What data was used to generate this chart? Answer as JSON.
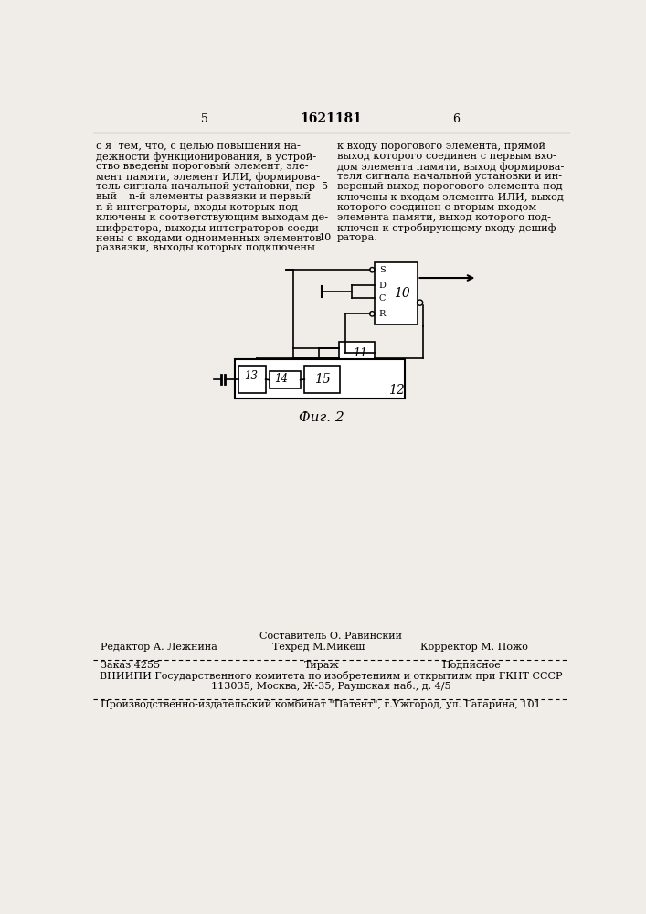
{
  "bg_color": "#f0ede8",
  "page_number_left": "5",
  "page_number_center": "1621181",
  "page_number_right": "6",
  "text_col1": [
    "с я  тем, что, с целью повышения на-",
    "дежности функционирования, в устрой-",
    "ство введены пороговый элемент, эле-",
    "мент памяти, элемент ИЛИ, формирова-",
    "тель сигнала начальной установки, пер-",
    "вый – n-й элементы развязки и первый –",
    "n-й интеграторы, входы которых под-",
    "ключены к соответствующим выходам де-",
    "шифратора, выходы интеграторов соеди-",
    "нены с входами одноименных элементов",
    "развязки, выходы которых подключены"
  ],
  "text_col2": [
    "к входу порогового элемента, прямой",
    "выход которого соединен с первым вхо-",
    "дом элемента памяти, выход формирова-",
    "теля сигнала начальной установки и ин-",
    "версный выход порогового элемента под-",
    "ключены к входам элемента ИЛИ, выход",
    "которого соединен с вторым входом",
    "элемента памяти, выход которого под-",
    "ключен к стробирующему входу дешиф-",
    "ратора."
  ],
  "line_number_5": "5",
  "line_number_10": "10",
  "fig_label": "Фиг. 2",
  "editor_label": "Редактор А. Лежнина",
  "sostavitel_label": "Составитель О. Равинский",
  "techred_label": "Техред М.Микеш",
  "corrector_label": "Корректор М. Пожо",
  "zakaz_label": "Заказ 4255",
  "tirazh_label": "Тираж",
  "podpisnoe_label": "Подписное",
  "vniip_line1": "ВНИИПИ Государственного комитета по изобретениям и открытиям при ГКНТ СССР",
  "vniip_line2": "113035, Москва, Ж-35, Раушская наб., д. 4/5",
  "factory_line": "Производственно-издательский комбинат \"Патент\", г.Ужгород, ул. Гагарина, 101"
}
